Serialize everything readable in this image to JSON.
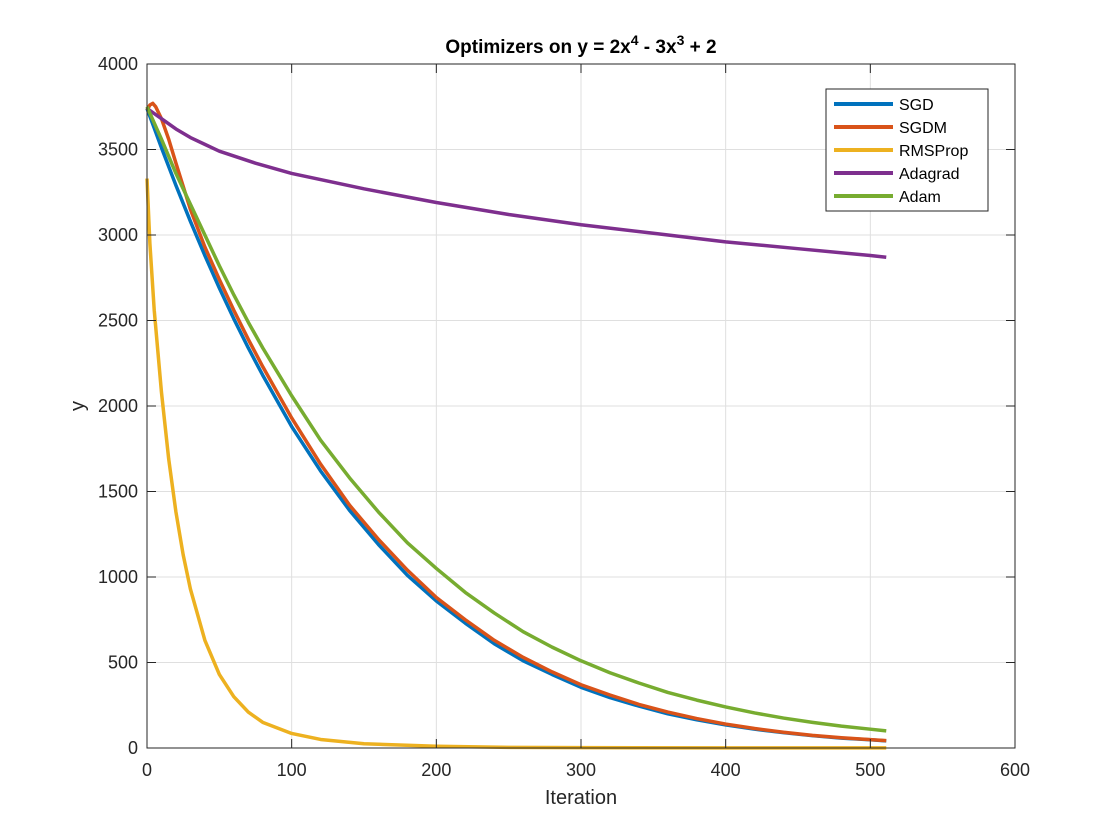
{
  "chart_data": {
    "type": "line",
    "title_parts": {
      "prefix": "Optimizers on y = 2x",
      "exp1": "4",
      "middle": " - 3x",
      "exp2": "3",
      "suffix": " + 2"
    },
    "xlabel": "Iteration",
    "ylabel": "y",
    "xlim": [
      0,
      600
    ],
    "ylim": [
      0,
      4000
    ],
    "xticks": [
      0,
      100,
      200,
      300,
      400,
      500,
      600
    ],
    "yticks": [
      0,
      500,
      1000,
      1500,
      2000,
      2500,
      3000,
      3500,
      4000
    ],
    "grid": true,
    "legend_position": "top-right",
    "series": [
      {
        "name": "SGD",
        "color": "#0072BD",
        "points": [
          [
            0,
            3740
          ],
          [
            10,
            3510
          ],
          [
            20,
            3290
          ],
          [
            30,
            3080
          ],
          [
            40,
            2880
          ],
          [
            50,
            2690
          ],
          [
            60,
            2510
          ],
          [
            70,
            2340
          ],
          [
            80,
            2180
          ],
          [
            90,
            2030
          ],
          [
            100,
            1880
          ],
          [
            120,
            1620
          ],
          [
            140,
            1390
          ],
          [
            160,
            1190
          ],
          [
            180,
            1010
          ],
          [
            200,
            860
          ],
          [
            220,
            730
          ],
          [
            240,
            610
          ],
          [
            260,
            510
          ],
          [
            280,
            430
          ],
          [
            300,
            355
          ],
          [
            320,
            295
          ],
          [
            340,
            245
          ],
          [
            360,
            200
          ],
          [
            380,
            165
          ],
          [
            400,
            135
          ],
          [
            420,
            110
          ],
          [
            440,
            90
          ],
          [
            460,
            72
          ],
          [
            480,
            58
          ],
          [
            500,
            48
          ],
          [
            511,
            42
          ]
        ]
      },
      {
        "name": "SGDM",
        "color": "#D95319",
        "points": [
          [
            0,
            3730
          ],
          [
            2,
            3760
          ],
          [
            4,
            3770
          ],
          [
            6,
            3750
          ],
          [
            10,
            3680
          ],
          [
            15,
            3560
          ],
          [
            20,
            3420
          ],
          [
            30,
            3150
          ],
          [
            40,
            2930
          ],
          [
            50,
            2740
          ],
          [
            60,
            2560
          ],
          [
            70,
            2390
          ],
          [
            80,
            2230
          ],
          [
            90,
            2080
          ],
          [
            100,
            1930
          ],
          [
            120,
            1660
          ],
          [
            140,
            1420
          ],
          [
            160,
            1220
          ],
          [
            180,
            1040
          ],
          [
            200,
            880
          ],
          [
            220,
            750
          ],
          [
            240,
            630
          ],
          [
            260,
            530
          ],
          [
            280,
            445
          ],
          [
            300,
            370
          ],
          [
            320,
            310
          ],
          [
            340,
            255
          ],
          [
            360,
            210
          ],
          [
            380,
            172
          ],
          [
            400,
            140
          ],
          [
            420,
            114
          ],
          [
            440,
            92
          ],
          [
            460,
            74
          ],
          [
            480,
            60
          ],
          [
            500,
            49
          ],
          [
            511,
            43
          ]
        ]
      },
      {
        "name": "RMSProp",
        "color": "#EDB120",
        "points": [
          [
            0,
            3330
          ],
          [
            2,
            2950
          ],
          [
            5,
            2560
          ],
          [
            10,
            2080
          ],
          [
            15,
            1690
          ],
          [
            20,
            1380
          ],
          [
            25,
            1130
          ],
          [
            30,
            930
          ],
          [
            40,
            630
          ],
          [
            50,
            430
          ],
          [
            60,
            300
          ],
          [
            70,
            210
          ],
          [
            80,
            150
          ],
          [
            100,
            85
          ],
          [
            120,
            50
          ],
          [
            150,
            25
          ],
          [
            200,
            10
          ],
          [
            250,
            4
          ],
          [
            300,
            2
          ],
          [
            400,
            1
          ],
          [
            511,
            1
          ]
        ]
      },
      {
        "name": "Adagrad",
        "color": "#7E2F8E",
        "points": [
          [
            0,
            3740
          ],
          [
            5,
            3710
          ],
          [
            10,
            3680
          ],
          [
            20,
            3620
          ],
          [
            30,
            3570
          ],
          [
            40,
            3530
          ],
          [
            50,
            3490
          ],
          [
            75,
            3420
          ],
          [
            100,
            3360
          ],
          [
            150,
            3270
          ],
          [
            200,
            3190
          ],
          [
            250,
            3120
          ],
          [
            300,
            3060
          ],
          [
            350,
            3010
          ],
          [
            400,
            2960
          ],
          [
            450,
            2920
          ],
          [
            500,
            2880
          ],
          [
            511,
            2870
          ]
        ]
      },
      {
        "name": "Adam",
        "color": "#77AC30",
        "points": [
          [
            0,
            3750
          ],
          [
            10,
            3560
          ],
          [
            20,
            3360
          ],
          [
            30,
            3180
          ],
          [
            40,
            3000
          ],
          [
            50,
            2820
          ],
          [
            60,
            2650
          ],
          [
            70,
            2490
          ],
          [
            80,
            2340
          ],
          [
            90,
            2200
          ],
          [
            100,
            2060
          ],
          [
            120,
            1800
          ],
          [
            140,
            1580
          ],
          [
            160,
            1380
          ],
          [
            180,
            1200
          ],
          [
            200,
            1050
          ],
          [
            220,
            910
          ],
          [
            240,
            790
          ],
          [
            260,
            680
          ],
          [
            280,
            590
          ],
          [
            300,
            510
          ],
          [
            320,
            440
          ],
          [
            340,
            380
          ],
          [
            360,
            325
          ],
          [
            380,
            280
          ],
          [
            400,
            240
          ],
          [
            420,
            205
          ],
          [
            440,
            175
          ],
          [
            460,
            150
          ],
          [
            480,
            128
          ],
          [
            500,
            110
          ],
          [
            511,
            100
          ]
        ]
      }
    ]
  }
}
